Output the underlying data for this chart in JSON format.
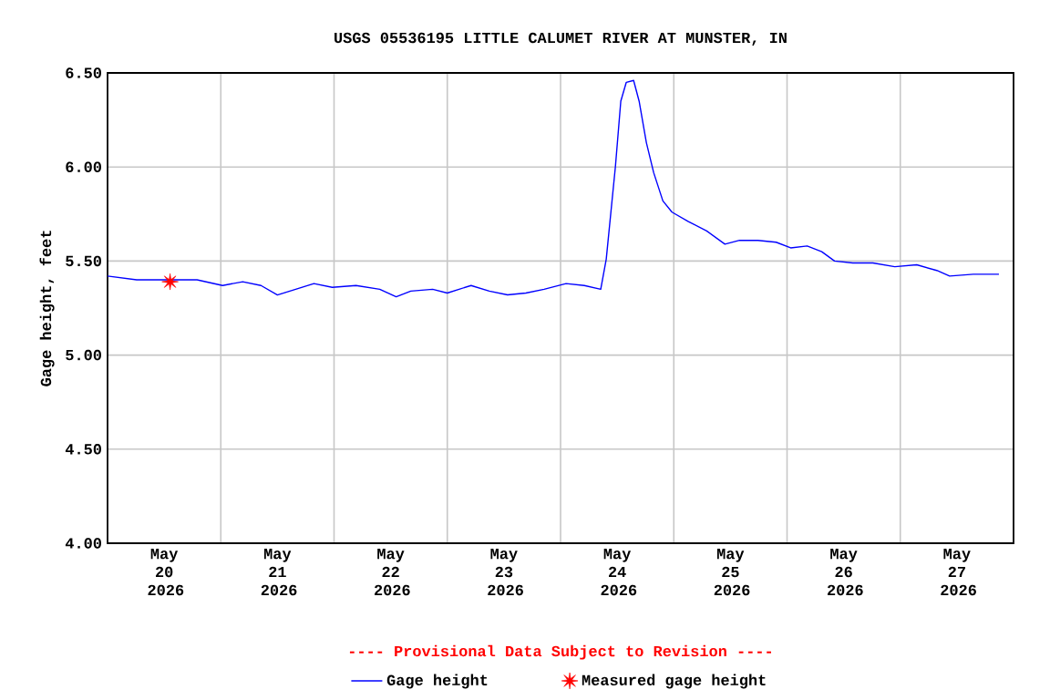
{
  "chart_data": {
    "type": "line",
    "title": "USGS 05536195 LITTLE CALUMET RIVER AT MUNSTER, IN",
    "ylabel": "Gage height, feet",
    "annotations": [
      "---- Provisional Data Subject to Revision ----"
    ],
    "xlim": [
      "2026-05-20T00:00",
      "2026-05-28T00:00"
    ],
    "xticks": [
      {
        "value": "2026-05-20T12:00",
        "label": "May 20 2026"
      },
      {
        "value": "2026-05-21T12:00",
        "label": "May 21 2026"
      },
      {
        "value": "2026-05-22T12:00",
        "label": "May 22 2026"
      },
      {
        "value": "2026-05-23T12:00",
        "label": "May 23 2026"
      },
      {
        "value": "2026-05-24T12:00",
        "label": "May 24 2026"
      },
      {
        "value": "2026-05-25T12:00",
        "label": "May 25 2026"
      },
      {
        "value": "2026-05-26T12:00",
        "label": "May 26 2026"
      },
      {
        "value": "2026-05-27T12:00",
        "label": "May 27 2026"
      },
      {
        "value": "2026-05-21T00:00",
        "label": null
      },
      {
        "value": "2026-05-22T00:00",
        "label": null
      },
      {
        "value": "2026-05-23T00:00",
        "label": null
      },
      {
        "value": "2026-05-24T00:00",
        "label": null
      },
      {
        "value": "2026-05-25T00:00",
        "label": null
      },
      {
        "value": "2026-05-26T00:00",
        "label": null
      },
      {
        "value": "2026-05-27T00:00",
        "label": null
      }
    ],
    "ylim": [
      4.0,
      6.5
    ],
    "yticks": [
      {
        "value": 4.0,
        "label": "4.00"
      },
      {
        "value": 4.5,
        "label": "4.50"
      },
      {
        "value": 5.0,
        "label": "5.00"
      },
      {
        "value": 5.5,
        "label": "5.50"
      },
      {
        "value": 6.0,
        "label": "6.00"
      },
      {
        "value": 6.5,
        "label": "6.50"
      }
    ],
    "grid": true,
    "legend": "bottom",
    "series": [
      {
        "name": "Gage height",
        "type": "line",
        "color": "#0000ff",
        "marker": "none",
        "x": [
          "2026-05-20T00:00",
          "2026-05-20T06:10",
          "2026-05-20T09:40",
          "2026-05-20T18:58",
          "2026-05-21T00:23",
          "2026-05-21T04:39",
          "2026-05-21T08:31",
          "2026-05-21T12:00",
          "2026-05-21T15:52",
          "2026-05-21T19:44",
          "2026-05-21T23:37",
          "2026-05-22T04:39",
          "2026-05-22T09:41",
          "2026-05-22T13:10",
          "2026-05-22T16:16",
          "2026-05-22T20:54",
          "2026-05-23T00:00",
          "2026-05-23T05:02",
          "2026-05-23T08:54",
          "2026-05-23T12:46",
          "2026-05-23T16:39",
          "2026-05-23T20:31",
          "2026-05-24T01:10",
          "2026-05-24T05:02",
          "2026-05-24T08:31",
          "2026-05-24T09:41",
          "2026-05-24T11:37",
          "2026-05-24T12:46",
          "2026-05-24T13:56",
          "2026-05-24T15:29",
          "2026-05-24T16:39",
          "2026-05-24T18:11",
          "2026-05-24T19:44",
          "2026-05-24T21:41",
          "2026-05-24T23:37",
          "2026-05-25T03:06",
          "2026-05-25T06:58",
          "2026-05-25T10:50",
          "2026-05-25T13:56",
          "2026-05-25T17:49",
          "2026-05-25T21:41",
          "2026-05-26T00:46",
          "2026-05-26T04:16",
          "2026-05-26T07:21",
          "2026-05-26T10:04",
          "2026-05-26T13:56",
          "2026-05-26T18:11",
          "2026-05-26T22:50",
          "2026-05-27T03:29",
          "2026-05-27T07:44",
          "2026-05-27T10:27",
          "2026-05-27T15:29",
          "2026-05-27T20:54"
        ],
        "values": [
          5.42,
          5.4,
          5.4,
          5.4,
          5.37,
          5.39,
          5.37,
          5.32,
          5.35,
          5.38,
          5.36,
          5.37,
          5.35,
          5.31,
          5.34,
          5.35,
          5.33,
          5.37,
          5.34,
          5.32,
          5.33,
          5.35,
          5.38,
          5.37,
          5.35,
          5.51,
          6.0,
          6.35,
          6.45,
          6.46,
          6.35,
          6.13,
          5.97,
          5.82,
          5.76,
          5.71,
          5.66,
          5.59,
          5.61,
          5.61,
          5.6,
          5.57,
          5.58,
          5.55,
          5.5,
          5.49,
          5.49,
          5.47,
          5.48,
          5.45,
          5.42,
          5.43,
          5.43
        ]
      },
      {
        "name": "Measured gage height",
        "type": "scatter",
        "color": "#ff0000",
        "marker": "star",
        "x": [
          "2026-05-20T13:15"
        ],
        "values": [
          5.39
        ]
      }
    ]
  }
}
